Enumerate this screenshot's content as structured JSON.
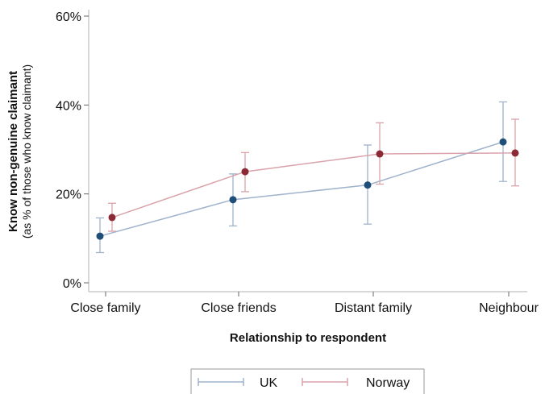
{
  "chart_data": {
    "type": "line",
    "categories": [
      "Close family",
      "Close friends",
      "Distant family",
      "Neighbour"
    ],
    "series": [
      {
        "name": "UK",
        "color": "#1f4e79",
        "line_color": "#9fb3cc",
        "values": [
          10.5,
          18.7,
          22.0,
          31.7
        ],
        "ci_low": [
          6.8,
          12.8,
          13.2,
          22.8
        ],
        "ci_high": [
          14.6,
          24.5,
          31.0,
          40.7
        ]
      },
      {
        "name": "Norway",
        "color": "#8b2a35",
        "line_color": "#d9a3aa",
        "values": [
          14.7,
          25.0,
          29.0,
          29.2
        ],
        "ci_low": [
          11.6,
          20.5,
          22.2,
          21.8
        ],
        "ci_high": [
          17.9,
          29.3,
          36.0,
          36.8
        ]
      }
    ],
    "yticks": [
      "0%",
      "20%",
      "40%",
      "60%"
    ],
    "ytick_values": [
      0,
      20,
      40,
      60
    ],
    "ylim": [
      0,
      60
    ],
    "ylabel": "Know non-genuine claimant",
    "ylabel_sub": "(as % of those who know claimant)",
    "xlabel": "Relationship to respondent",
    "legend_position": "bottom"
  }
}
